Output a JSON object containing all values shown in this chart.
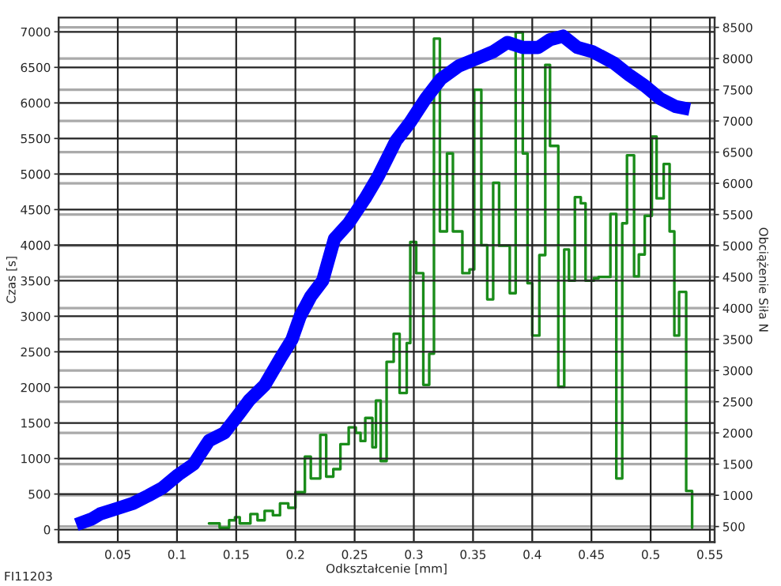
{
  "chart_data": {
    "type": "line",
    "xlabel": "Odkształcenie [mm]",
    "ylabel": "Czas [s]",
    "y2label": "Obciążenie Siła N",
    "annotations": [
      "FI11203"
    ],
    "xlim": [
      0,
      0.554
    ],
    "xticks": [
      0.05,
      0.1,
      0.15,
      0.2,
      0.25,
      0.3,
      0.35,
      0.4,
      0.45,
      0.5,
      0.55
    ],
    "ylim": [
      -175,
      7200
    ],
    "yticks": [
      0,
      500,
      1000,
      1500,
      2000,
      2500,
      3000,
      3500,
      4000,
      4500,
      5000,
      5500,
      6000,
      6500,
      7000
    ],
    "y2lim": [
      251,
      8657
    ],
    "y2ticks": [
      500,
      1000,
      1500,
      2000,
      2500,
      3000,
      3500,
      4000,
      4500,
      5000,
      5500,
      6000,
      6500,
      7000,
      7500,
      8000,
      8500
    ],
    "grid": true,
    "series": [
      {
        "color": "#0000ff",
        "x": [
          0.015,
          0.028,
          0.035,
          0.05,
          0.063,
          0.076,
          0.088,
          0.101,
          0.114,
          0.127,
          0.14,
          0.153,
          0.161,
          0.174,
          0.187,
          0.197,
          0.204,
          0.213,
          0.223,
          0.233,
          0.245,
          0.259,
          0.27,
          0.285,
          0.297,
          0.31,
          0.323,
          0.338,
          0.354,
          0.367,
          0.379,
          0.392,
          0.405,
          0.415,
          0.426,
          0.438,
          0.451,
          0.469,
          0.482,
          0.495,
          0.508,
          0.521,
          0.533
        ],
        "values": [
          70,
          150,
          220,
          300,
          370,
          480,
          590,
          770,
          920,
          1250,
          1360,
          1640,
          1820,
          2030,
          2400,
          2670,
          3000,
          3280,
          3500,
          4090,
          4310,
          4660,
          4970,
          5470,
          5730,
          6060,
          6340,
          6520,
          6630,
          6720,
          6850,
          6780,
          6780,
          6890,
          6940,
          6780,
          6720,
          6560,
          6390,
          6240,
          6060,
          5950,
          5910
        ]
      },
      {
        "type": "step",
        "axis": "y2",
        "color": "#1a8c1a",
        "x": [
          0.127,
          0.136,
          0.144,
          0.149,
          0.153,
          0.162,
          0.168,
          0.174,
          0.181,
          0.187,
          0.194,
          0.2,
          0.208,
          0.213,
          0.221,
          0.226,
          0.232,
          0.238,
          0.245,
          0.251,
          0.255,
          0.259,
          0.265,
          0.268,
          0.272,
          0.277,
          0.283,
          0.288,
          0.294,
          0.297,
          0.302,
          0.308,
          0.313,
          0.317,
          0.322,
          0.328,
          0.333,
          0.341,
          0.347,
          0.351,
          0.357,
          0.362,
          0.367,
          0.372,
          0.381,
          0.386,
          0.392,
          0.396,
          0.4,
          0.406,
          0.411,
          0.415,
          0.422,
          0.427,
          0.431,
          0.436,
          0.441,
          0.445,
          0.452,
          0.456,
          0.466,
          0.471,
          0.476,
          0.48,
          0.486,
          0.49,
          0.495,
          0.501,
          0.505,
          0.511,
          0.516,
          0.52,
          0.524,
          0.53,
          0.535
        ],
        "values": [
          550,
          480,
          600,
          650,
          550,
          700,
          600,
          750,
          680,
          870,
          800,
          1050,
          1620,
          1270,
          1970,
          1300,
          1420,
          1820,
          2090,
          2000,
          1870,
          2240,
          1770,
          2520,
          1550,
          3140,
          3590,
          2640,
          3440,
          5060,
          4560,
          2770,
          3270,
          8320,
          5230,
          6480,
          5230,
          4560,
          4620,
          7500,
          5010,
          4140,
          6010,
          5000,
          4240,
          8420,
          6480,
          4400,
          3560,
          4850,
          7900,
          6600,
          2740,
          4940,
          4440,
          5780,
          5680,
          4440,
          4480,
          4500,
          5510,
          1270,
          5360,
          6450,
          4510,
          4860,
          5480,
          6750,
          5760,
          6310,
          5230,
          3560,
          4260,
          1070,
          480
        ]
      }
    ]
  }
}
